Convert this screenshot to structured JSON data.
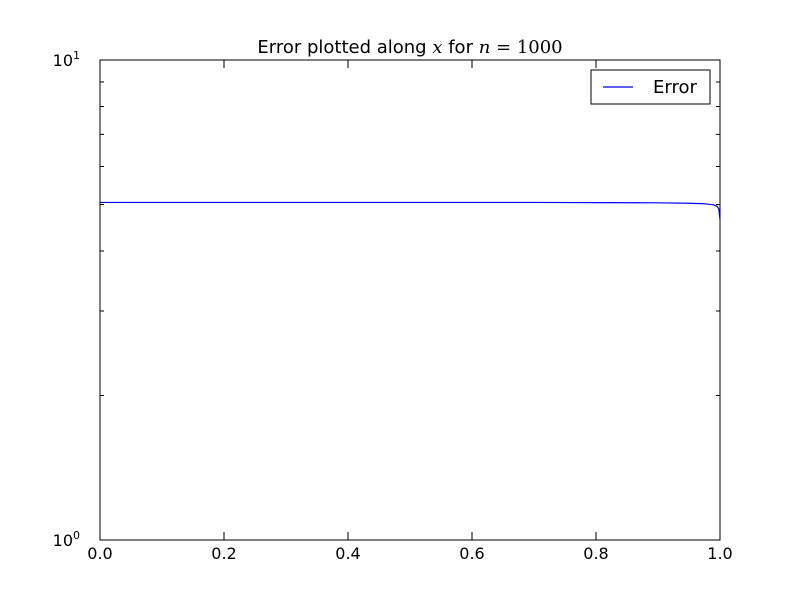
{
  "chart_data": {
    "type": "line",
    "title": {
      "prefix": "Error plotted along ",
      "var_x": "x",
      "middle": " for ",
      "var_n": "n",
      "equals": " = ",
      "n_value": "1000"
    },
    "xlabel": "",
    "ylabel": "",
    "xlim": [
      0,
      1
    ],
    "ylim": [
      1,
      10
    ],
    "yscale": "log",
    "grid": false,
    "legend_position": "top-right",
    "x_ticks": [
      "0.0",
      "0.2",
      "0.4",
      "0.6",
      "0.8",
      "1.0"
    ],
    "y_tick_labels": [
      {
        "base": "10",
        "exp": "0",
        "value": 1
      },
      {
        "base": "10",
        "exp": "1",
        "value": 10
      }
    ],
    "series": [
      {
        "name": "Error",
        "color": "#0000ff",
        "x": [
          0.0,
          0.1,
          0.2,
          0.3,
          0.4,
          0.5,
          0.6,
          0.7,
          0.8,
          0.9,
          0.95,
          0.97,
          0.98,
          0.99,
          0.995,
          0.998,
          1.0
        ],
        "y": [
          5.05,
          5.05,
          5.05,
          5.05,
          5.05,
          5.05,
          5.05,
          5.05,
          5.045,
          5.04,
          5.03,
          5.02,
          5.01,
          4.99,
          4.96,
          4.9,
          4.65
        ]
      }
    ]
  }
}
